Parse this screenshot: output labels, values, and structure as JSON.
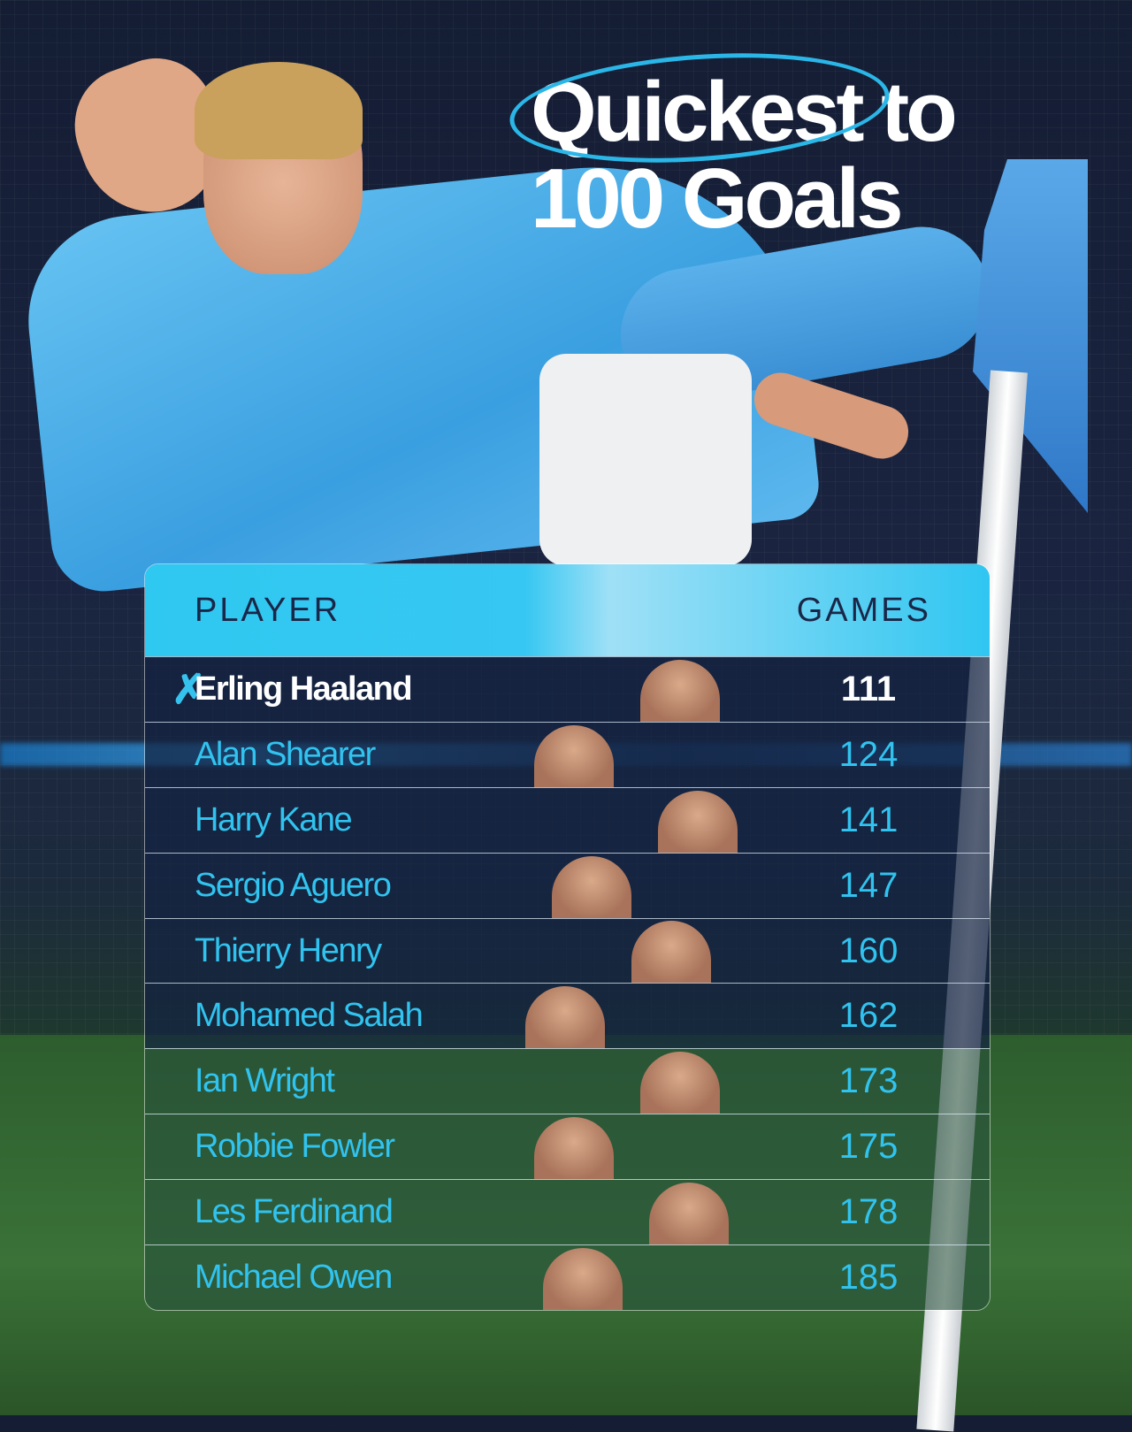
{
  "title": {
    "line1": "Quickest to",
    "line2": "100 Goals"
  },
  "table": {
    "headers": {
      "player": "PLAYER",
      "games": "GAMES"
    },
    "rows": [
      {
        "player": "Erling Haaland",
        "games": "111"
      },
      {
        "player": "Alan Shearer",
        "games": "124"
      },
      {
        "player": "Harry Kane",
        "games": "141"
      },
      {
        "player": "Sergio Aguero",
        "games": "147"
      },
      {
        "player": "Thierry Henry",
        "games": "160"
      },
      {
        "player": "Mohamed Salah",
        "games": "162"
      },
      {
        "player": "Ian Wright",
        "games": "173"
      },
      {
        "player": "Robbie Fowler",
        "games": "175"
      },
      {
        "player": "Les Ferdinand",
        "games": "178"
      },
      {
        "player": "Michael Owen",
        "games": "185"
      }
    ]
  },
  "colors": {
    "accent": "#31c3ef",
    "header": "#2fc8f0",
    "background": "#141d33"
  }
}
